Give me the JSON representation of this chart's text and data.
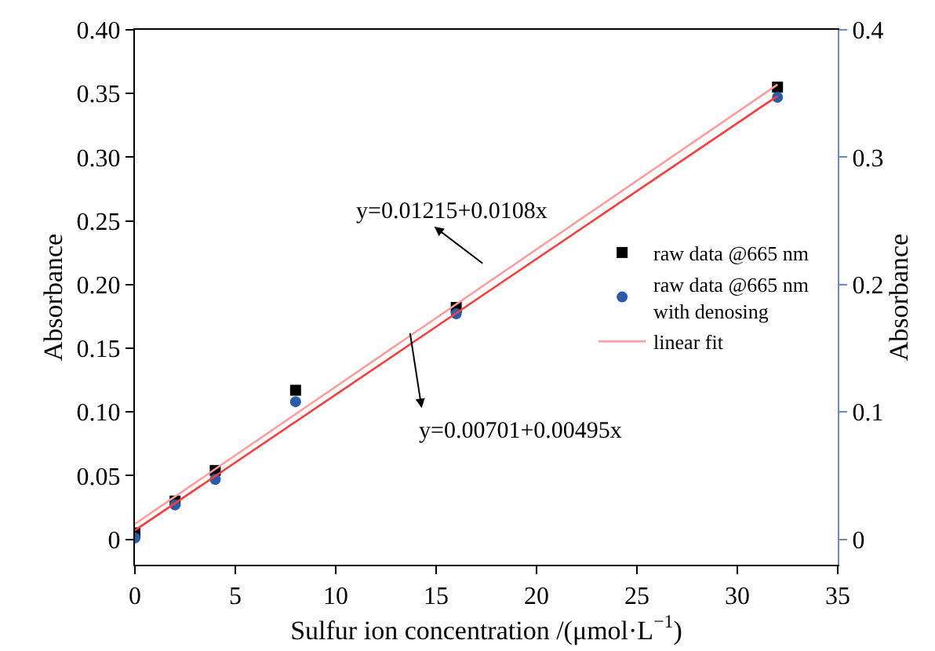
{
  "chart_data": {
    "type": "scatter",
    "xlabel": "Sulfur ion concentration /(μmol·L$^{−1}$)",
    "ylabel": "Absorbance",
    "y2label": "Absorbance",
    "xlim": [
      0,
      35
    ],
    "xticks": [
      0,
      5,
      10,
      15,
      20,
      25,
      30,
      35
    ],
    "ylim": [
      -0.02,
      0.4
    ],
    "yticks": [
      0,
      0.05,
      {
        "value": 0.1,
        "label": "0.10"
      },
      0.15,
      {
        "value": 0.2,
        "label": "0.20"
      },
      0.25,
      {
        "value": 0.3,
        "label": "0.30"
      },
      0.35,
      {
        "value": 0.4,
        "label": "0.40"
      }
    ],
    "y2lim": [
      -0.02,
      0.4
    ],
    "y2ticks": [
      0,
      0.1,
      0.2,
      0.3,
      0.4
    ],
    "legend": "right",
    "series": [
      {
        "name": "raw data @665 nm",
        "marker": "square",
        "color": "#000000",
        "x": [
          0,
          2,
          4,
          8,
          16,
          32
        ],
        "values": [
          0.005,
          0.03,
          0.054,
          0.117,
          0.182,
          0.355
        ]
      },
      {
        "name": "raw data @665 nm\nwith denosing",
        "marker": "circle",
        "color": "#2a5caa",
        "x": [
          0,
          2,
          4,
          8,
          16,
          32
        ],
        "values": [
          0.001,
          0.027,
          0.047,
          0.108,
          0.177,
          0.347
        ]
      },
      {
        "name": "linear fit",
        "type": "line",
        "marker": "none",
        "color": "#ff9c9c",
        "x": [
          0,
          32
        ],
        "values": [
          0.012,
          0.357
        ]
      },
      {
        "type": "line",
        "marker": "none",
        "color": "#ff3a3a",
        "x": [
          0,
          32
        ],
        "values": [
          0.007,
          0.348
        ]
      }
    ],
    "annotations": [
      "y=0.01215+0.0108x",
      "y=0.00701+0.00495x"
    ]
  }
}
